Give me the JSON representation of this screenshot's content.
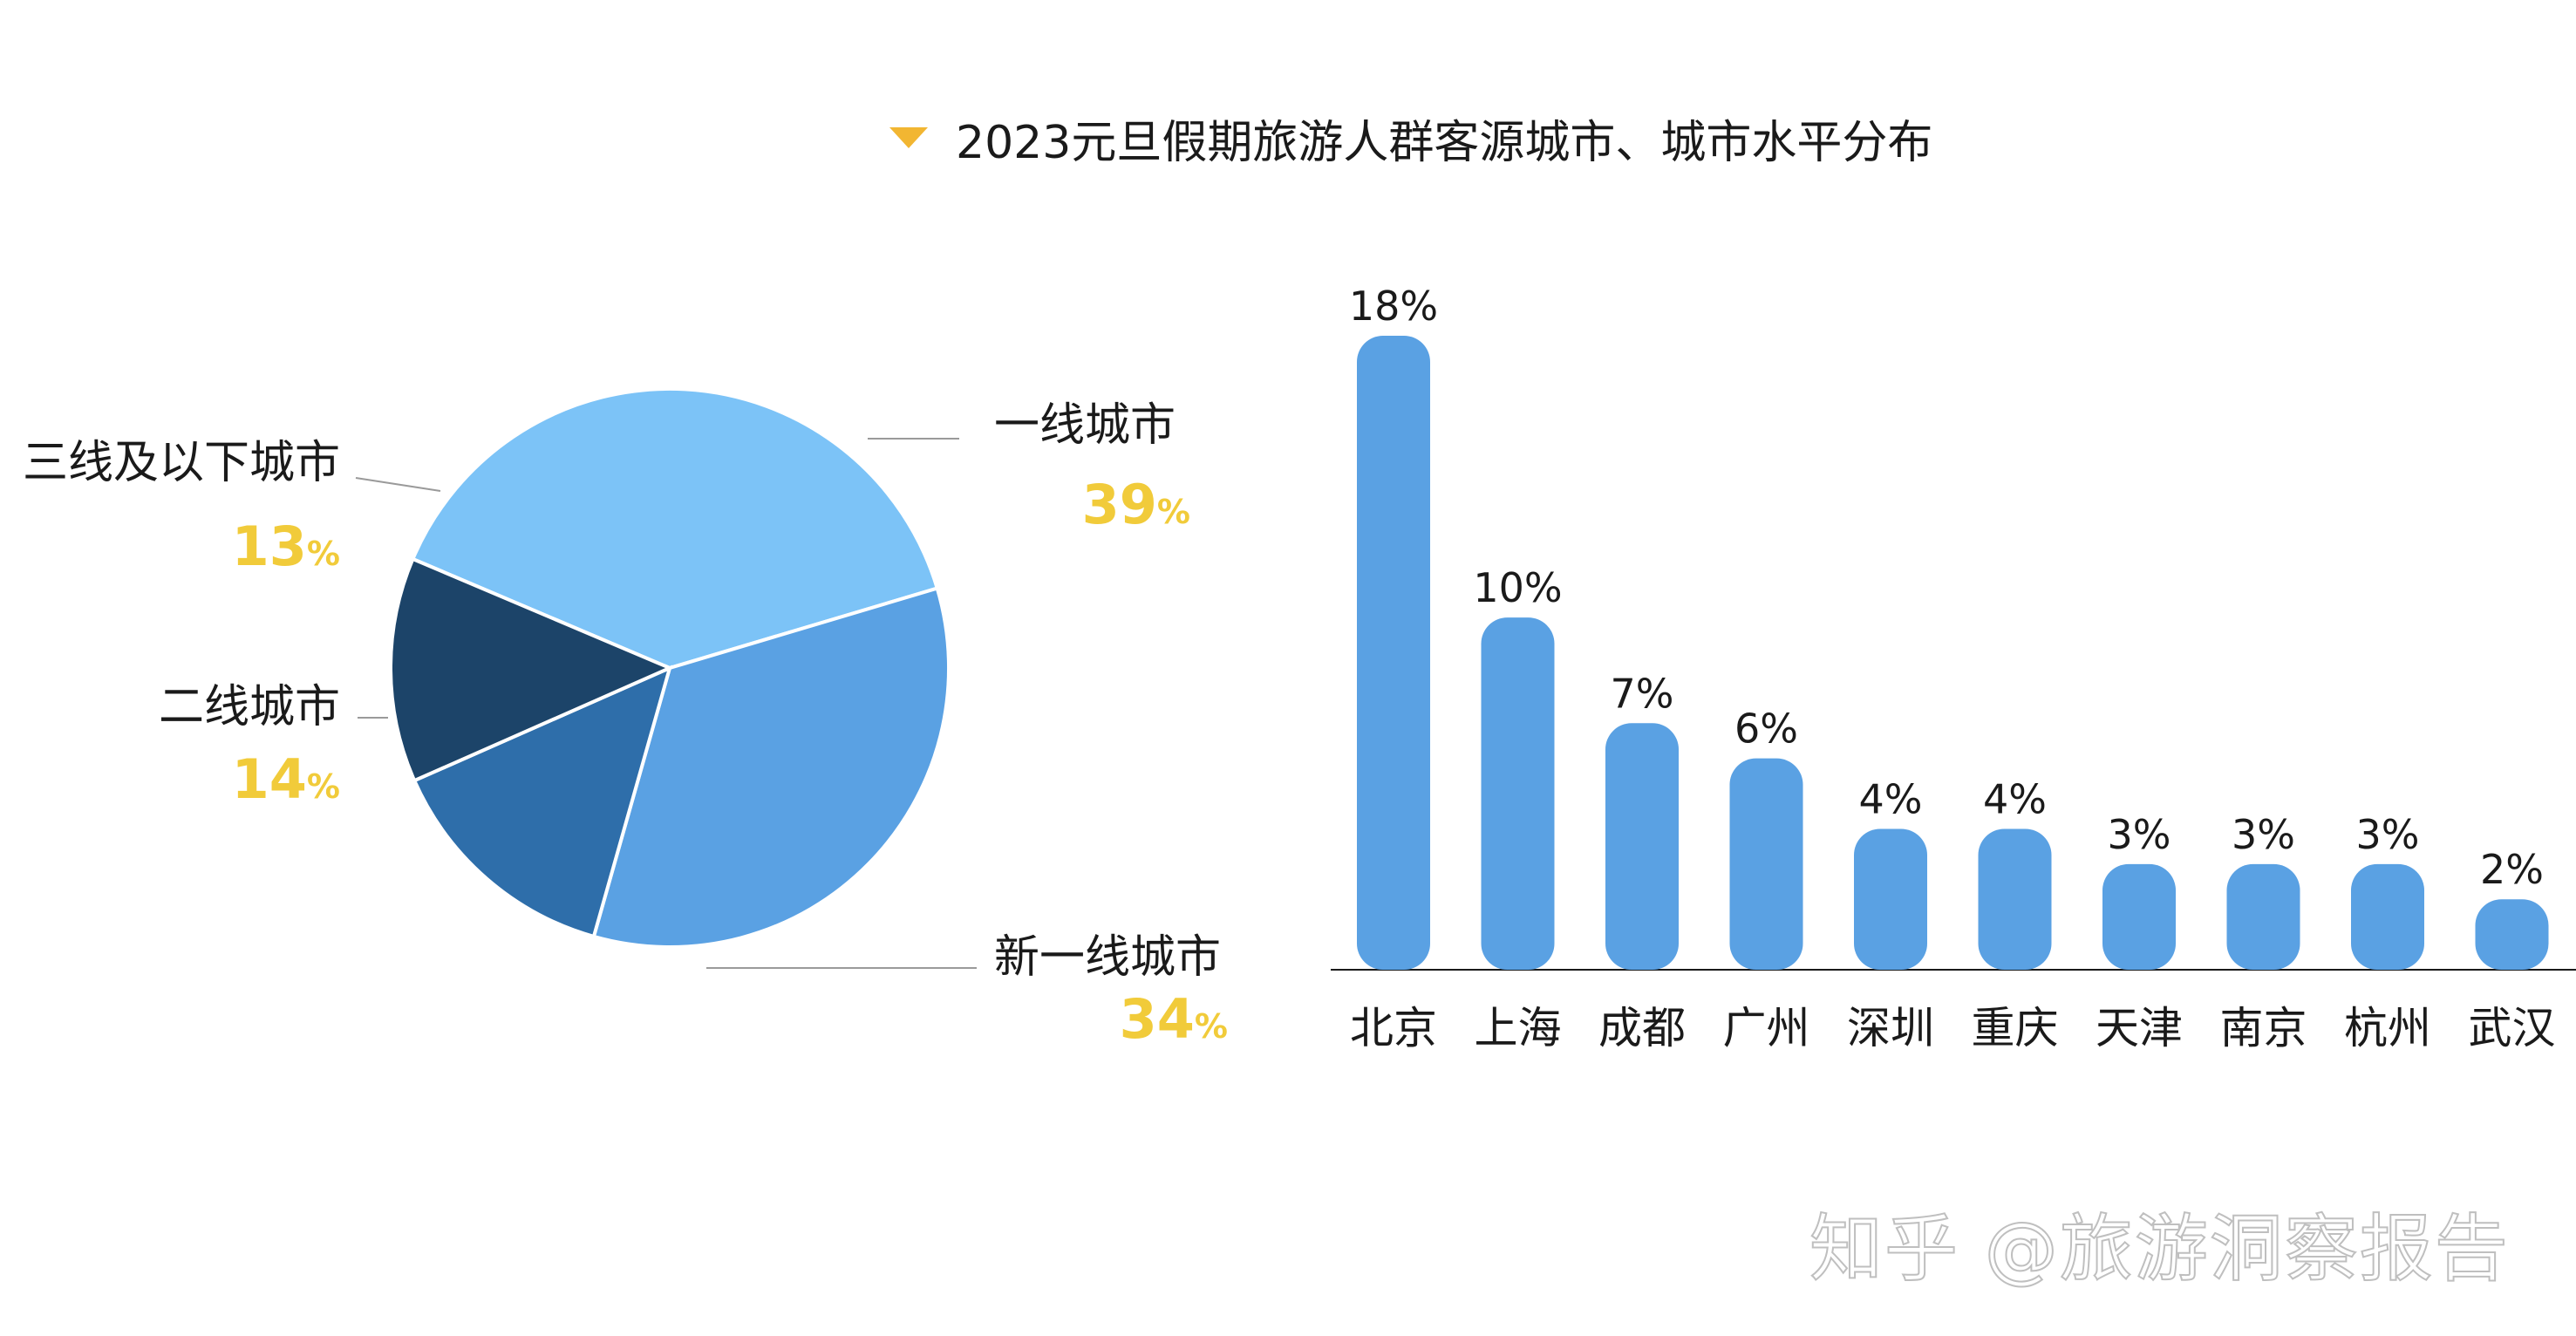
{
  "title": "2023元旦假期旅游人群客源城市、城市水平分布",
  "watermark": "知乎 @旅游洞察报告",
  "colors": {
    "title_marker": "#f2b632",
    "percent_text": "#f1cb3a",
    "bar": "#5aa1e3",
    "pie": [
      "#7cc3f7",
      "#5aa1e3",
      "#2e6eaa",
      "#1c4469"
    ]
  },
  "chart_data": [
    {
      "type": "pie",
      "slices": [
        {
          "label": "一线城市",
          "value": 39,
          "value_text": "39",
          "pct_sign": "%"
        },
        {
          "label": "新一线城市",
          "value": 34,
          "value_text": "34",
          "pct_sign": "%"
        },
        {
          "label": "二线城市",
          "value": 14,
          "value_text": "14",
          "pct_sign": "%"
        },
        {
          "label": "三线及以下城市",
          "value": 13,
          "value_text": "13",
          "pct_sign": "%"
        }
      ]
    },
    {
      "type": "bar",
      "categories": [
        "北京",
        "上海",
        "成都",
        "广州",
        "深圳",
        "重庆",
        "天津",
        "南京",
        "杭州",
        "武汉"
      ],
      "values": [
        18,
        10,
        7,
        6,
        4,
        4,
        3,
        3,
        3,
        2
      ],
      "value_labels": [
        "18%",
        "10%",
        "7%",
        "6%",
        "4%",
        "4%",
        "3%",
        "3%",
        "3%",
        "2%"
      ],
      "grid": false
    }
  ]
}
